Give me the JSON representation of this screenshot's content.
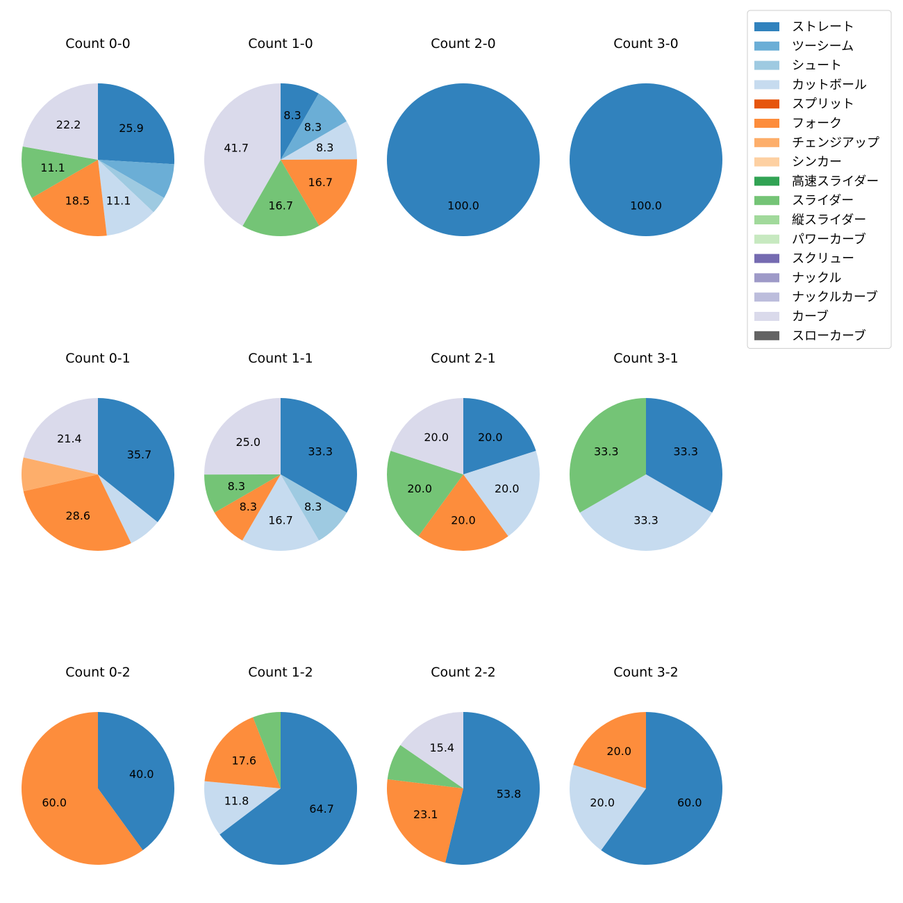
{
  "chart_data": {
    "type": "pie",
    "start_angle_deg": 90,
    "direction": "clockwise",
    "label_format": "percent-1-decimal",
    "legend": {
      "placement": "top-right",
      "entries": [
        {
          "name": "ストレート",
          "color": "#3182bd"
        },
        {
          "name": "ツーシーム",
          "color": "#6baed6"
        },
        {
          "name": "シュート",
          "color": "#9ecae1"
        },
        {
          "name": "カットボール",
          "color": "#c6dbef"
        },
        {
          "name": "スプリット",
          "color": "#e6550d"
        },
        {
          "name": "フォーク",
          "color": "#fd8d3c"
        },
        {
          "name": "チェンジアップ",
          "color": "#fdae6b"
        },
        {
          "name": "シンカー",
          "color": "#fdd0a2"
        },
        {
          "name": "高速スライダー",
          "color": "#31a354"
        },
        {
          "name": "スライダー",
          "color": "#74c476"
        },
        {
          "name": "縦スライダー",
          "color": "#a1d99b"
        },
        {
          "name": "パワーカーブ",
          "color": "#c7e9c0"
        },
        {
          "name": "スクリュー",
          "color": "#756bb1"
        },
        {
          "name": "ナックル",
          "color": "#9e9ac8"
        },
        {
          "name": "ナックルカーブ",
          "color": "#bcbddc"
        },
        {
          "name": "カーブ",
          "color": "#dadaeb"
        },
        {
          "name": "スローカーブ",
          "color": "#636363"
        }
      ]
    },
    "pies": [
      {
        "title": "Count 0-0",
        "slices": [
          {
            "pitch": "ストレート",
            "value": 25.9,
            "label": "25.9"
          },
          {
            "pitch": "ツーシーム",
            "value": 7.4,
            "label": ""
          },
          {
            "pitch": "シュート",
            "value": 3.7,
            "label": ""
          },
          {
            "pitch": "カットボール",
            "value": 11.1,
            "label": "11.1"
          },
          {
            "pitch": "フォーク",
            "value": 18.5,
            "label": "18.5"
          },
          {
            "pitch": "スライダー",
            "value": 11.1,
            "label": "11.1"
          },
          {
            "pitch": "カーブ",
            "value": 22.2,
            "label": "22.2"
          }
        ]
      },
      {
        "title": "Count 1-0",
        "slices": [
          {
            "pitch": "ストレート",
            "value": 8.3,
            "label": "8.3"
          },
          {
            "pitch": "ツーシーム",
            "value": 8.3,
            "label": "8.3"
          },
          {
            "pitch": "カットボール",
            "value": 8.3,
            "label": "8.3"
          },
          {
            "pitch": "フォーク",
            "value": 16.7,
            "label": "16.7"
          },
          {
            "pitch": "スライダー",
            "value": 16.7,
            "label": "16.7"
          },
          {
            "pitch": "カーブ",
            "value": 41.7,
            "label": "41.7"
          }
        ]
      },
      {
        "title": "Count 2-0",
        "slices": [
          {
            "pitch": "ストレート",
            "value": 100.0,
            "label": "100.0"
          }
        ]
      },
      {
        "title": "Count 3-0",
        "slices": [
          {
            "pitch": "ストレート",
            "value": 100.0,
            "label": "100.0"
          }
        ]
      },
      {
        "title": "Count 0-1",
        "slices": [
          {
            "pitch": "ストレート",
            "value": 35.7,
            "label": "35.7"
          },
          {
            "pitch": "カットボール",
            "value": 7.1,
            "label": ""
          },
          {
            "pitch": "フォーク",
            "value": 28.6,
            "label": "28.6"
          },
          {
            "pitch": "チェンジアップ",
            "value": 7.1,
            "label": ""
          },
          {
            "pitch": "カーブ",
            "value": 21.4,
            "label": "21.4"
          }
        ]
      },
      {
        "title": "Count 1-1",
        "slices": [
          {
            "pitch": "ストレート",
            "value": 33.3,
            "label": "33.3"
          },
          {
            "pitch": "シュート",
            "value": 8.3,
            "label": "8.3"
          },
          {
            "pitch": "カットボール",
            "value": 16.7,
            "label": "16.7"
          },
          {
            "pitch": "フォーク",
            "value": 8.3,
            "label": "8.3"
          },
          {
            "pitch": "スライダー",
            "value": 8.3,
            "label": "8.3"
          },
          {
            "pitch": "カーブ",
            "value": 25.0,
            "label": "25.0"
          }
        ]
      },
      {
        "title": "Count 2-1",
        "slices": [
          {
            "pitch": "ストレート",
            "value": 20.0,
            "label": "20.0"
          },
          {
            "pitch": "カットボール",
            "value": 20.0,
            "label": "20.0"
          },
          {
            "pitch": "フォーク",
            "value": 20.0,
            "label": "20.0"
          },
          {
            "pitch": "スライダー",
            "value": 20.0,
            "label": "20.0"
          },
          {
            "pitch": "カーブ",
            "value": 20.0,
            "label": "20.0"
          }
        ]
      },
      {
        "title": "Count 3-1",
        "slices": [
          {
            "pitch": "ストレート",
            "value": 33.3,
            "label": "33.3"
          },
          {
            "pitch": "カットボール",
            "value": 33.3,
            "label": "33.3"
          },
          {
            "pitch": "スライダー",
            "value": 33.3,
            "label": "33.3"
          }
        ]
      },
      {
        "title": "Count 0-2",
        "slices": [
          {
            "pitch": "ストレート",
            "value": 40.0,
            "label": "40.0"
          },
          {
            "pitch": "フォーク",
            "value": 60.0,
            "label": "60.0"
          }
        ]
      },
      {
        "title": "Count 1-2",
        "slices": [
          {
            "pitch": "ストレート",
            "value": 64.7,
            "label": "64.7"
          },
          {
            "pitch": "カットボール",
            "value": 11.8,
            "label": "11.8"
          },
          {
            "pitch": "フォーク",
            "value": 17.6,
            "label": "17.6"
          },
          {
            "pitch": "スライダー",
            "value": 5.9,
            "label": ""
          }
        ]
      },
      {
        "title": "Count 2-2",
        "slices": [
          {
            "pitch": "ストレート",
            "value": 53.8,
            "label": "53.8"
          },
          {
            "pitch": "フォーク",
            "value": 23.1,
            "label": "23.1"
          },
          {
            "pitch": "スライダー",
            "value": 7.7,
            "label": ""
          },
          {
            "pitch": "カーブ",
            "value": 15.4,
            "label": "15.4"
          }
        ]
      },
      {
        "title": "Count 3-2",
        "slices": [
          {
            "pitch": "ストレート",
            "value": 60.0,
            "label": "60.0"
          },
          {
            "pitch": "カットボール",
            "value": 20.0,
            "label": "20.0"
          },
          {
            "pitch": "フォーク",
            "value": 20.0,
            "label": "20.0"
          }
        ]
      }
    ]
  }
}
